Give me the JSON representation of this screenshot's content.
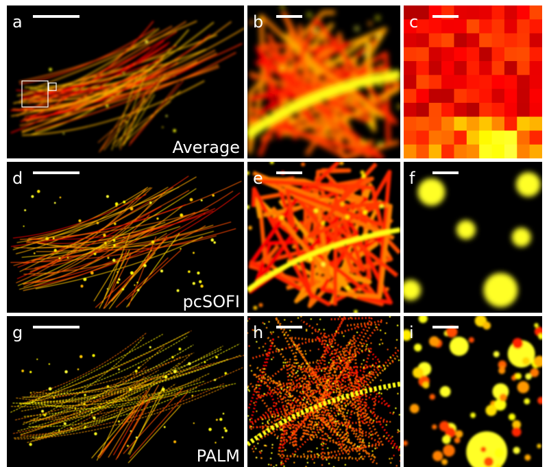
{
  "rows": [
    {
      "caption": "Average",
      "panels": [
        "a",
        "b",
        "c"
      ]
    },
    {
      "caption": "pcSOFI",
      "panels": [
        "d",
        "e",
        "f"
      ]
    },
    {
      "caption": "PALM",
      "panels": [
        "g",
        "h",
        "i"
      ]
    }
  ]
}
